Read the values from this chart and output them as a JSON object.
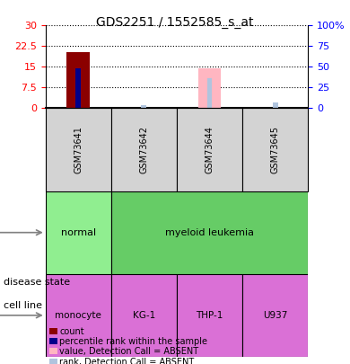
{
  "title": "GDS2251 / 1552585_s_at",
  "samples": [
    "GSM73641",
    "GSM73642",
    "GSM73644",
    "GSM73645"
  ],
  "count_values": [
    20.5,
    0,
    0,
    0
  ],
  "rank_values": [
    14.5,
    0,
    0,
    0
  ],
  "absent_value_values": [
    0,
    0,
    14.5,
    0
  ],
  "absent_rank_values": [
    0,
    1.2,
    11.0,
    2.0
  ],
  "left_yticks": [
    0,
    7.5,
    15,
    22.5,
    30
  ],
  "right_yticks": [
    0,
    25,
    50,
    75,
    100
  ],
  "right_ylabels": [
    "0",
    "25",
    "50",
    "75",
    "100%"
  ],
  "ylim": [
    0,
    30
  ],
  "disease_state": [
    [
      "normal",
      1
    ],
    [
      "myeloid leukemia",
      3
    ]
  ],
  "disease_colors": [
    "#90ee90",
    "#90ee90"
  ],
  "disease_state_colors": [
    "#98fb98",
    "#7de87d"
  ],
  "cell_line": [
    "monocyte",
    "KG-1",
    "THP-1",
    "U937"
  ],
  "cell_line_color": "#da70d6",
  "bar_color_count": "#8b0000",
  "bar_color_rank": "#00008b",
  "bar_color_absent_value": "#ffb6c1",
  "bar_color_absent_rank": "#b0c4de",
  "bg_color": "#d3d3d3",
  "legend_items": [
    {
      "color": "#8b0000",
      "label": "count"
    },
    {
      "color": "#00008b",
      "label": "percentile rank within the sample"
    },
    {
      "color": "#ffb6c1",
      "label": "value, Detection Call = ABSENT"
    },
    {
      "color": "#b0c4de",
      "label": "rank, Detection Call = ABSENT"
    }
  ]
}
